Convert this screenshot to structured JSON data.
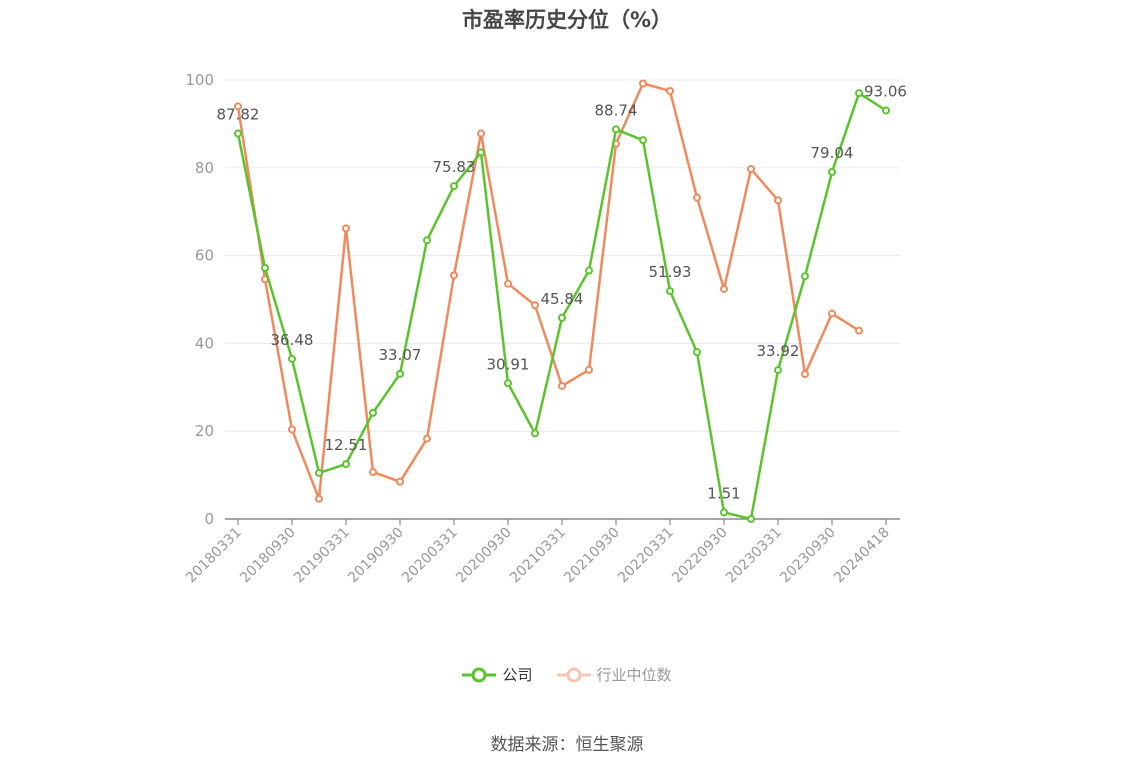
{
  "chart_data": {
    "type": "line",
    "title": "市盈率历史分位（%）",
    "ylim": [
      0,
      100
    ],
    "y_ticks": [
      "0",
      "20",
      "40",
      "60",
      "80",
      "100"
    ],
    "x_tick_labels": [
      "20180331",
      "20180930",
      "20190331",
      "20190930",
      "20200331",
      "20200930",
      "20210331",
      "20210930",
      "20220331",
      "20220930",
      "20230331",
      "20230930",
      "20240418"
    ],
    "x": [
      "20180331",
      "20180630",
      "20180930",
      "20181231",
      "20190331",
      "20190630",
      "20190930",
      "20191231",
      "20200331",
      "20200630",
      "20200930",
      "20201231",
      "20210331",
      "20210630",
      "20210930",
      "20211231",
      "20220331",
      "20220630",
      "20220930",
      "20221231",
      "20230331",
      "20230630",
      "20230930",
      "20231231",
      "20240418"
    ],
    "series": [
      {
        "name": "公司",
        "color": "#5ac42d",
        "values": [
          87.82,
          57.2,
          36.48,
          10.5,
          12.51,
          24.2,
          33.07,
          63.5,
          75.83,
          83.5,
          30.91,
          19.5,
          45.84,
          56.6,
          88.74,
          86.3,
          51.93,
          38.0,
          1.51,
          0.0,
          33.92,
          55.3,
          79.04,
          97.0,
          93.06
        ],
        "labeled_indices": [
          0,
          2,
          4,
          6,
          8,
          10,
          12,
          14,
          16,
          18,
          20,
          22,
          24
        ]
      },
      {
        "name": "行业中位数",
        "color": "#f08a5d",
        "values": [
          94.0,
          54.6,
          20.4,
          4.6,
          66.2,
          10.7,
          8.5,
          18.3,
          55.5,
          87.8,
          53.6,
          48.7,
          30.3,
          34.0,
          85.5,
          99.2,
          97.5,
          73.2,
          52.4,
          79.7,
          72.6,
          33.0,
          46.8,
          42.9,
          null
        ]
      }
    ],
    "legend_position": "bottom",
    "grid": true
  },
  "source": "数据来源：恒生聚源"
}
